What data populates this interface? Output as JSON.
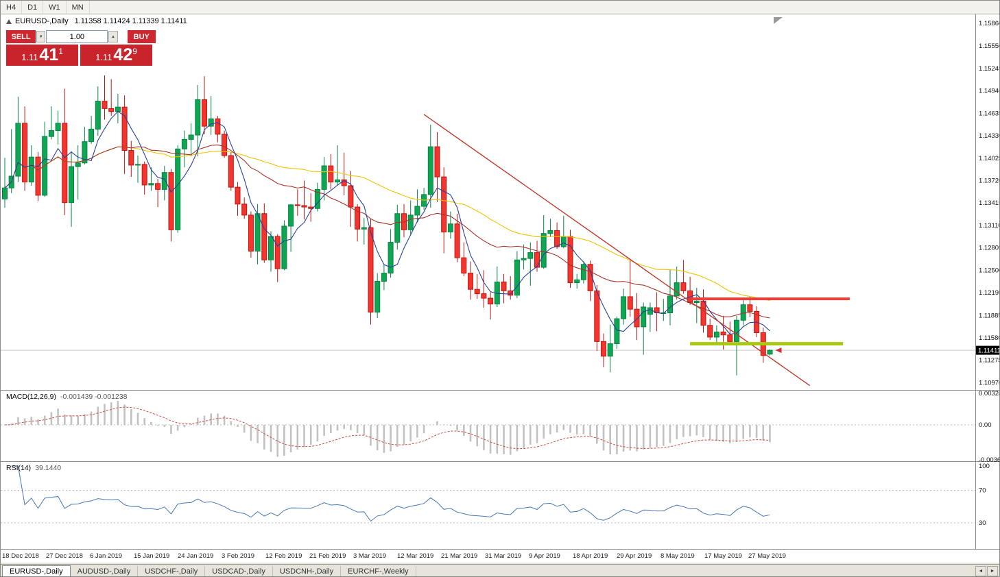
{
  "toolbar": {
    "timeframes": [
      "H4",
      "D1",
      "W1",
      "MN"
    ]
  },
  "header": {
    "symbol": "EURUSD-,Daily",
    "ohlc": "1.11358 1.11424 1.11339 1.11411"
  },
  "trade_panel": {
    "sell_label": "SELL",
    "buy_label": "BUY",
    "volume": "1.00",
    "volume_up_icon": "▲",
    "volume_down_icon": "▼",
    "bid": {
      "prefix": "1.11",
      "big": "41",
      "sup": "1"
    },
    "ask": {
      "prefix": "1.11",
      "big": "42",
      "sup": "9"
    }
  },
  "indicators": {
    "macd_label": "MACD(12,26,9)",
    "macd_values": "-0.001439 -0.001238",
    "rsi_label": "RSI(14)",
    "rsi_value": "39.1440"
  },
  "chart_data": {
    "type": "candlestick",
    "symbol": "EURUSD-",
    "period": "Daily",
    "current_price": "1.11411",
    "price_axis_labels": [
      "1.15860",
      "1.15550",
      "1.15245",
      "1.14940",
      "1.14635",
      "1.14330",
      "1.14025",
      "1.13720",
      "1.13415",
      "1.13110",
      "1.12805",
      "1.12500",
      "1.12195",
      "1.11885",
      "1.11580",
      "1.11275",
      "1.10970"
    ],
    "macd_axis_labels": [
      "0.00328",
      "0.00",
      "-0.00365"
    ],
    "rsi_axis_labels": [
      "100",
      "70",
      "30"
    ],
    "rsi_levels": [
      70,
      30
    ],
    "date_labels": [
      "18 Dec 2018",
      "27 Dec 2018",
      "6 Jan 2019",
      "15 Jan 2019",
      "24 Jan 2019",
      "3 Feb 2019",
      "12 Feb 2019",
      "21 Feb 2019",
      "3 Mar 2019",
      "12 Mar 2019",
      "21 Mar 2019",
      "31 Mar 2019",
      "9 Apr 2019",
      "18 Apr 2019",
      "29 Apr 2019",
      "8 May 2019",
      "17 May 2019",
      "27 May 2019"
    ],
    "moving_averages": [
      {
        "period": 44,
        "color": "#f0c400"
      },
      {
        "period": 20,
        "color": "#a93226"
      },
      {
        "period": 5,
        "color": "#24409a"
      }
    ],
    "colors": {
      "up": "#0fa653",
      "up_border": "#068243",
      "down": "#f2352f",
      "down_border": "#c3150f",
      "macd_hist": "#c2c2c2",
      "macd_signal": "#cf4a41",
      "rsi_line": "#4576b5",
      "current_price_line": "#c9c9c9"
    },
    "objects": {
      "resistance": {
        "price": 1.1211,
        "from_index": 103,
        "to_index": 127,
        "color": "#e8403a"
      },
      "support": {
        "price": 1.115,
        "from_index": 103,
        "to_index": 126,
        "color": "#a9c814"
      },
      "trendline": {
        "start_index": 63,
        "start_price": 1.1462,
        "end_index": 121,
        "end_price": 1.1093,
        "color": "#c0392b"
      }
    },
    "ohlc": [
      [
        1.1347,
        1.1403,
        1.1335,
        1.1362
      ],
      [
        1.1362,
        1.1442,
        1.1355,
        1.1378
      ],
      [
        1.1378,
        1.1486,
        1.137,
        1.145
      ],
      [
        1.145,
        1.1473,
        1.1358,
        1.137
      ],
      [
        1.137,
        1.142,
        1.1365,
        1.1404
      ],
      [
        1.1404,
        1.1411,
        1.1344,
        1.1352
      ],
      [
        1.1352,
        1.1452,
        1.135,
        1.1432
      ],
      [
        1.1432,
        1.1473,
        1.1428,
        1.144
      ],
      [
        1.144,
        1.1467,
        1.1421,
        1.145
      ],
      [
        1.145,
        1.1497,
        1.1325,
        1.1342
      ],
      [
        1.1342,
        1.1412,
        1.1309,
        1.1391
      ],
      [
        1.1391,
        1.142,
        1.1346,
        1.1396
      ],
      [
        1.1396,
        1.1445,
        1.1394,
        1.1425
      ],
      [
        1.1425,
        1.146,
        1.1422,
        1.1442
      ],
      [
        1.1442,
        1.15,
        1.1433,
        1.148
      ],
      [
        1.148,
        1.1515,
        1.1455,
        1.147
      ],
      [
        1.147,
        1.151,
        1.146,
        1.1466
      ],
      [
        1.1466,
        1.149,
        1.145,
        1.1472
      ],
      [
        1.1472,
        1.1488,
        1.1381,
        1.1413
      ],
      [
        1.1413,
        1.1426,
        1.1377,
        1.1393
      ],
      [
        1.1393,
        1.1406,
        1.1369,
        1.1394
      ],
      [
        1.1394,
        1.1398,
        1.1353,
        1.1366
      ],
      [
        1.1366,
        1.139,
        1.1358,
        1.1368
      ],
      [
        1.1368,
        1.1374,
        1.1336,
        1.136
      ],
      [
        1.136,
        1.1392,
        1.1345,
        1.1383
      ],
      [
        1.1383,
        1.1388,
        1.1289,
        1.1305
      ],
      [
        1.1305,
        1.142,
        1.1301,
        1.1415
      ],
      [
        1.1415,
        1.144,
        1.139,
        1.1428
      ],
      [
        1.1428,
        1.145,
        1.1405,
        1.1434
      ],
      [
        1.1434,
        1.1502,
        1.1405,
        1.1482
      ],
      [
        1.1482,
        1.1514,
        1.1435,
        1.1446
      ],
      [
        1.1446,
        1.1487,
        1.1434,
        1.1456
      ],
      [
        1.1456,
        1.146,
        1.1424,
        1.1435
      ],
      [
        1.1435,
        1.144,
        1.1403,
        1.1406
      ],
      [
        1.1406,
        1.1411,
        1.1358,
        1.1363
      ],
      [
        1.1363,
        1.137,
        1.1324,
        1.134
      ],
      [
        1.134,
        1.1349,
        1.132,
        1.1325
      ],
      [
        1.1325,
        1.133,
        1.1267,
        1.1276
      ],
      [
        1.1276,
        1.134,
        1.1258,
        1.1327
      ],
      [
        1.1327,
        1.1341,
        1.126,
        1.1264
      ],
      [
        1.1264,
        1.1303,
        1.1248,
        1.1296
      ],
      [
        1.1296,
        1.1299,
        1.1234,
        1.1252
      ],
      [
        1.1252,
        1.1318,
        1.125,
        1.131
      ],
      [
        1.131,
        1.134,
        1.1275,
        1.1339
      ],
      [
        1.1339,
        1.136,
        1.1324,
        1.1338
      ],
      [
        1.1338,
        1.1372,
        1.1319,
        1.1336
      ],
      [
        1.1336,
        1.1355,
        1.1316,
        1.1334
      ],
      [
        1.1334,
        1.1369,
        1.133,
        1.136
      ],
      [
        1.136,
        1.1404,
        1.1345,
        1.1392
      ],
      [
        1.1392,
        1.1408,
        1.136,
        1.137
      ],
      [
        1.137,
        1.142,
        1.1365,
        1.1373
      ],
      [
        1.1373,
        1.141,
        1.1352,
        1.1365
      ],
      [
        1.1365,
        1.1385,
        1.1309,
        1.1336
      ],
      [
        1.1336,
        1.134,
        1.1289,
        1.1306
      ],
      [
        1.1306,
        1.1321,
        1.1285,
        1.1308
      ],
      [
        1.1308,
        1.132,
        1.1176,
        1.1193
      ],
      [
        1.1193,
        1.1246,
        1.1185,
        1.1235
      ],
      [
        1.1235,
        1.1258,
        1.1223,
        1.1246
      ],
      [
        1.1246,
        1.1306,
        1.124,
        1.1288
      ],
      [
        1.1288,
        1.1339,
        1.1278,
        1.1327
      ],
      [
        1.1327,
        1.134,
        1.1295,
        1.1305
      ],
      [
        1.1305,
        1.1345,
        1.1298,
        1.1325
      ],
      [
        1.1325,
        1.136,
        1.1315,
        1.1337
      ],
      [
        1.1337,
        1.1362,
        1.1332,
        1.1353
      ],
      [
        1.1353,
        1.1448,
        1.1335,
        1.1418
      ],
      [
        1.1418,
        1.1438,
        1.1343,
        1.1377
      ],
      [
        1.1377,
        1.139,
        1.1273,
        1.1302
      ],
      [
        1.1302,
        1.133,
        1.1293,
        1.1313
      ],
      [
        1.1313,
        1.1327,
        1.1261,
        1.1267
      ],
      [
        1.1267,
        1.1288,
        1.1242,
        1.1246
      ],
      [
        1.1246,
        1.1262,
        1.121,
        1.1224
      ],
      [
        1.1224,
        1.1245,
        1.1211,
        1.1218
      ],
      [
        1.1218,
        1.125,
        1.1199,
        1.1212
      ],
      [
        1.1212,
        1.122,
        1.1183,
        1.1204
      ],
      [
        1.1204,
        1.1255,
        1.12,
        1.1234
      ],
      [
        1.1234,
        1.1245,
        1.1205,
        1.1222
      ],
      [
        1.1222,
        1.1242,
        1.121,
        1.1216
      ],
      [
        1.1216,
        1.1276,
        1.1212,
        1.1264
      ],
      [
        1.1264,
        1.1285,
        1.1251,
        1.1266
      ],
      [
        1.1266,
        1.1288,
        1.1229,
        1.1274
      ],
      [
        1.1274,
        1.129,
        1.1248,
        1.1254
      ],
      [
        1.1254,
        1.1325,
        1.1252,
        1.13
      ],
      [
        1.13,
        1.132,
        1.1295,
        1.1304
      ],
      [
        1.1304,
        1.1315,
        1.1279,
        1.1282
      ],
      [
        1.1282,
        1.1324,
        1.128,
        1.1296
      ],
      [
        1.1296,
        1.1305,
        1.1226,
        1.1233
      ],
      [
        1.1233,
        1.1245,
        1.1225,
        1.1237
      ],
      [
        1.1237,
        1.1262,
        1.1232,
        1.1258
      ],
      [
        1.1258,
        1.1263,
        1.1208,
        1.1222
      ],
      [
        1.1222,
        1.123,
        1.114,
        1.1153
      ],
      [
        1.1153,
        1.1164,
        1.1118,
        1.1133
      ],
      [
        1.1133,
        1.1176,
        1.1111,
        1.115
      ],
      [
        1.115,
        1.1187,
        1.1143,
        1.1184
      ],
      [
        1.1184,
        1.1225,
        1.1176,
        1.1214
      ],
      [
        1.1214,
        1.1265,
        1.1187,
        1.1197
      ],
      [
        1.1197,
        1.1219,
        1.1155,
        1.1173
      ],
      [
        1.1173,
        1.1206,
        1.1135,
        1.12
      ],
      [
        1.119,
        1.1206,
        1.1166,
        1.1199
      ],
      [
        1.1199,
        1.122,
        1.1167,
        1.1192
      ],
      [
        1.1192,
        1.1211,
        1.1181,
        1.1192
      ],
      [
        1.1192,
        1.1251,
        1.1175,
        1.1215
      ],
      [
        1.1215,
        1.1255,
        1.121,
        1.1233
      ],
      [
        1.1233,
        1.1264,
        1.1218,
        1.1222
      ],
      [
        1.1222,
        1.1241,
        1.1203,
        1.1206
      ],
      [
        1.1206,
        1.1226,
        1.1178,
        1.1208
      ],
      [
        1.1208,
        1.1224,
        1.1165,
        1.1175
      ],
      [
        1.1175,
        1.1184,
        1.1155,
        1.1159
      ],
      [
        1.1159,
        1.1175,
        1.115,
        1.1166
      ],
      [
        1.1166,
        1.1188,
        1.1142,
        1.1162
      ],
      [
        1.1162,
        1.118,
        1.1149,
        1.1153
      ],
      [
        1.1153,
        1.1188,
        1.1107,
        1.1182
      ],
      [
        1.1182,
        1.1213,
        1.1175,
        1.1203
      ],
      [
        1.1203,
        1.1215,
        1.1186,
        1.1194
      ],
      [
        1.1194,
        1.1201,
        1.1159,
        1.1165
      ],
      [
        1.1165,
        1.1172,
        1.1124,
        1.1134
      ],
      [
        1.11358,
        1.11424,
        1.11339,
        1.11411
      ]
    ]
  },
  "tabs": {
    "items": [
      {
        "label": "EURUSD-,Daily"
      },
      {
        "label": "AUDUSD-,Daily"
      },
      {
        "label": "USDCHF-,Daily"
      },
      {
        "label": "USDCAD-,Daily"
      },
      {
        "label": "USDCNH-,Daily"
      },
      {
        "label": "EURCHF-,Weekly"
      }
    ],
    "scroll_left_icon": "◄",
    "scroll_right_icon": "►"
  }
}
